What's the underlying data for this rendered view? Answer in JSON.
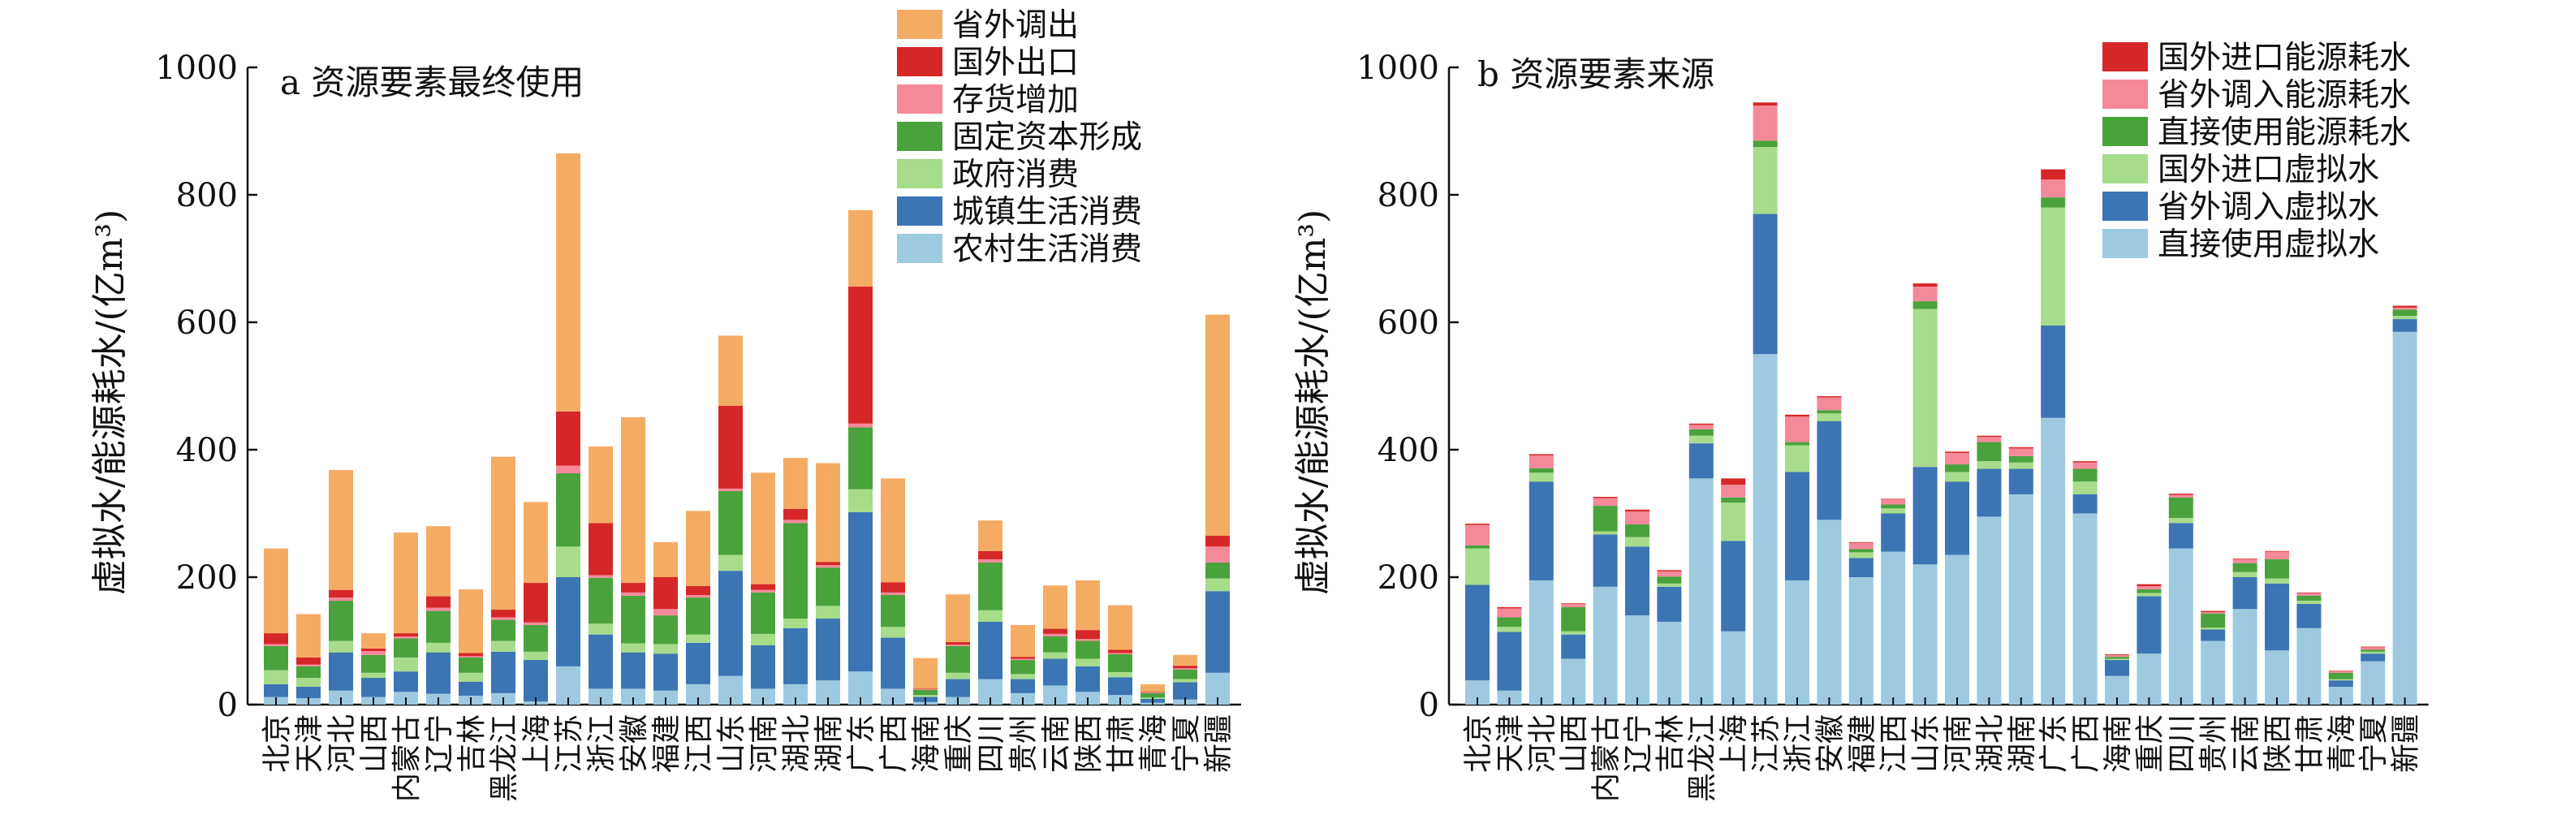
{
  "figure": {
    "panels": [
      {
        "panel_title": "a 资源要素最终使用",
        "ylabel": "虚拟水/能源耗水/(亿m³)"
      },
      {
        "panel_title": "b 资源要素来源",
        "ylabel": "虚拟水/能源耗水/(亿m³)"
      }
    ]
  },
  "chart_data": [
    {
      "type": "bar",
      "stacked": true,
      "title": "a 资源要素最终使用",
      "xlabel": "",
      "ylabel": "虚拟水/能源耗水/(亿m³)",
      "ylim": [
        0,
        1000
      ],
      "yticks": [
        0,
        200,
        400,
        600,
        800,
        1000
      ],
      "legend_position": "top-right",
      "categories": [
        "北京",
        "天津",
        "河北",
        "山西",
        "内蒙古",
        "辽宁",
        "吉林",
        "黑龙江",
        "上海",
        "江苏",
        "浙江",
        "安徽",
        "福建",
        "江西",
        "山东",
        "河南",
        "湖北",
        "湖南",
        "广东",
        "广西",
        "海南",
        "重庆",
        "四川",
        "贵州",
        "云南",
        "陕西",
        "甘肃",
        "青海",
        "宁夏",
        "新疆"
      ],
      "series": [
        {
          "name": "农村生活消费",
          "color": "#9ecae1",
          "values": [
            12,
            10,
            22,
            12,
            20,
            17,
            14,
            18,
            5,
            60,
            25,
            25,
            22,
            32,
            45,
            25,
            32,
            38,
            52,
            25,
            4,
            12,
            40,
            18,
            30,
            20,
            15,
            3,
            8,
            50
          ]
        },
        {
          "name": "城镇生活消费",
          "color": "#3b75b4",
          "values": [
            20,
            18,
            60,
            30,
            32,
            65,
            22,
            65,
            65,
            140,
            85,
            57,
            58,
            65,
            165,
            68,
            88,
            97,
            250,
            80,
            8,
            28,
            90,
            22,
            42,
            40,
            28,
            6,
            27,
            128
          ]
        },
        {
          "name": "政府消费",
          "color": "#a6dc8a",
          "values": [
            22,
            14,
            18,
            8,
            22,
            15,
            14,
            17,
            13,
            48,
            17,
            14,
            15,
            13,
            25,
            18,
            15,
            20,
            36,
            17,
            3,
            10,
            18,
            8,
            10,
            12,
            8,
            2,
            5,
            20
          ]
        },
        {
          "name": "固定资本形成",
          "color": "#4aa23c",
          "values": [
            38,
            18,
            63,
            28,
            30,
            50,
            24,
            33,
            42,
            115,
            72,
            75,
            45,
            58,
            100,
            65,
            150,
            60,
            97,
            50,
            8,
            42,
            75,
            22,
            25,
            28,
            28,
            7,
            15,
            25
          ]
        },
        {
          "name": "存货增加",
          "color": "#f4899a",
          "values": [
            3,
            3,
            5,
            6,
            3,
            5,
            2,
            4,
            4,
            12,
            4,
            5,
            10,
            4,
            4,
            4,
            5,
            4,
            6,
            4,
            1,
            2,
            5,
            2,
            4,
            3,
            2,
            1,
            2,
            25
          ]
        },
        {
          "name": "国外出口",
          "color": "#d62728",
          "values": [
            17,
            11,
            12,
            4,
            5,
            18,
            5,
            12,
            62,
            85,
            82,
            15,
            50,
            14,
            130,
            9,
            17,
            5,
            215,
            16,
            1,
            4,
            13,
            3,
            8,
            14,
            5,
            1,
            4,
            17
          ]
        },
        {
          "name": "省外调出",
          "color": "#f4ac64",
          "values": [
            133,
            68,
            188,
            24,
            158,
            110,
            100,
            240,
            127,
            405,
            120,
            260,
            55,
            118,
            110,
            175,
            80,
            155,
            120,
            163,
            48,
            75,
            48,
            50,
            68,
            78,
            70,
            12,
            17,
            347
          ]
        }
      ]
    },
    {
      "type": "bar",
      "stacked": true,
      "title": "b 资源要素来源",
      "xlabel": "",
      "ylabel": "虚拟水/能源耗水/(亿m³)",
      "ylim": [
        0,
        1000
      ],
      "yticks": [
        0,
        200,
        400,
        600,
        800,
        1000
      ],
      "legend_position": "top-right",
      "categories": [
        "北京",
        "天津",
        "河北",
        "山西",
        "内蒙古",
        "辽宁",
        "吉林",
        "黑龙江",
        "上海",
        "江苏",
        "浙江",
        "安徽",
        "福建",
        "江西",
        "山东",
        "河南",
        "湖北",
        "湖南",
        "广东",
        "广西",
        "海南",
        "重庆",
        "四川",
        "贵州",
        "云南",
        "陕西",
        "甘肃",
        "青海",
        "宁夏",
        "新疆"
      ],
      "series": [
        {
          "name": "直接使用虚拟水",
          "color": "#9ecae1",
          "values": [
            38,
            22,
            195,
            72,
            185,
            140,
            130,
            355,
            115,
            550,
            195,
            290,
            200,
            240,
            220,
            235,
            295,
            330,
            450,
            300,
            45,
            80,
            245,
            100,
            150,
            85,
            120,
            28,
            68,
            585
          ]
        },
        {
          "name": "省外调入虚拟水",
          "color": "#3b75b4",
          "values": [
            150,
            92,
            155,
            38,
            82,
            108,
            55,
            55,
            142,
            220,
            170,
            155,
            30,
            60,
            153,
            115,
            75,
            40,
            145,
            30,
            25,
            90,
            40,
            18,
            50,
            105,
            38,
            10,
            12,
            20
          ]
        },
        {
          "name": "国外进口虚拟水",
          "color": "#a6dc8a",
          "values": [
            57,
            8,
            14,
            5,
            5,
            15,
            5,
            12,
            60,
            105,
            42,
            12,
            9,
            8,
            248,
            15,
            12,
            10,
            185,
            20,
            2,
            5,
            8,
            3,
            8,
            8,
            5,
            2,
            3,
            5
          ]
        },
        {
          "name": "直接使用能源耗水",
          "color": "#4aa23c",
          "values": [
            5,
            15,
            7,
            38,
            40,
            20,
            11,
            10,
            8,
            10,
            5,
            5,
            5,
            6,
            12,
            12,
            30,
            10,
            16,
            20,
            3,
            6,
            32,
            22,
            14,
            30,
            8,
            10,
            3,
            10
          ]
        },
        {
          "name": "省外调入能源耗水",
          "color": "#f4899a",
          "values": [
            32,
            14,
            20,
            5,
            12,
            20,
            8,
            7,
            20,
            55,
            40,
            20,
            10,
            8,
            23,
            18,
            8,
            12,
            28,
            10,
            3,
            5,
            4,
            2,
            6,
            12,
            4,
            2,
            4,
            3
          ]
        },
        {
          "name": "国外进口能源耗水",
          "color": "#d62728",
          "values": [
            2,
            2,
            2,
            1,
            2,
            3,
            2,
            2,
            10,
            5,
            3,
            2,
            1,
            1,
            5,
            2,
            2,
            2,
            16,
            2,
            1,
            3,
            2,
            2,
            1,
            1,
            1,
            1,
            1,
            3
          ]
        }
      ]
    }
  ]
}
